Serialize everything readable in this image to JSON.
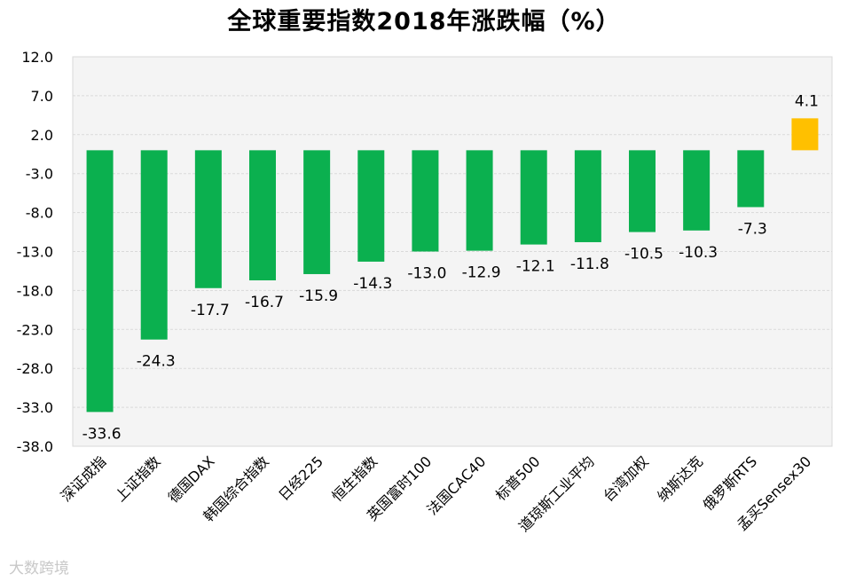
{
  "chart_data": {
    "type": "bar",
    "title": "全球重要指数2018年涨跌幅（%）",
    "xlabel": "",
    "ylabel": "",
    "ylim": [
      -38,
      12
    ],
    "yticks": [
      "12.0",
      "7.0",
      "2.0",
      "-3.0",
      "-8.0",
      "-13.0",
      "-18.0",
      "-23.0",
      "-28.0",
      "-33.0",
      "-38.0"
    ],
    "ytick_values": [
      12,
      7,
      2,
      -3,
      -8,
      -13,
      -18,
      -23,
      -28,
      -33,
      -38
    ],
    "grid": true,
    "categories": [
      "深证成指",
      "上证指数",
      "德国DAX",
      "韩国综合指数",
      "日经225",
      "恒生指数",
      "英国富时100",
      "法国CAC40",
      "标普500",
      "道琼斯工业平均",
      "台湾加权",
      "纳斯达克",
      "俄罗斯RTS",
      "孟买Sensex30"
    ],
    "values": [
      -33.6,
      -24.3,
      -17.7,
      -16.7,
      -15.9,
      -14.3,
      -13.0,
      -12.9,
      -12.1,
      -11.8,
      -10.5,
      -10.3,
      -7.3,
      4.1
    ],
    "labels": [
      "-33.6",
      "-24.3",
      "-17.7",
      "-16.7",
      "-15.9",
      "-14.3",
      "-13.0",
      "-12.9",
      "-12.1",
      "-11.8",
      "-10.5",
      "-10.3",
      "-7.3",
      "4.1"
    ],
    "colors": {
      "negative": "#0bb04f",
      "positive": "#ffc000",
      "grid": "#d9d9d9",
      "plot_bg": "#f4f4f4"
    }
  },
  "watermark": "大数跨境"
}
